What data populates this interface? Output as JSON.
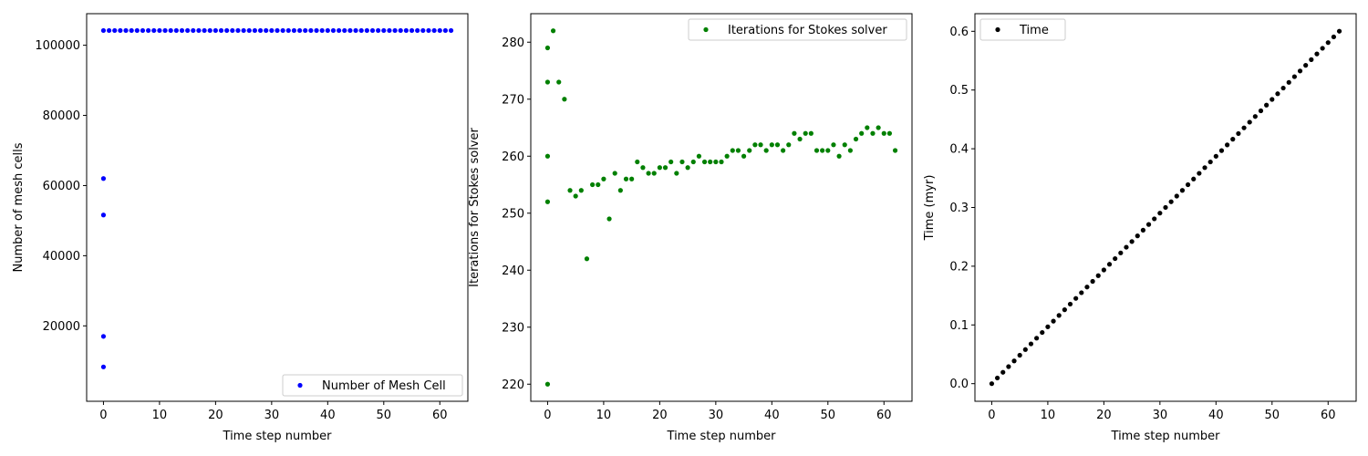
{
  "chart_data": [
    {
      "type": "scatter",
      "xlabel": "Time step number",
      "ylabel": "Number of mesh cells",
      "xlim": [
        -3,
        65
      ],
      "ylim": [
        -1500,
        109000
      ],
      "xticks": [
        0,
        10,
        20,
        30,
        40,
        50,
        60
      ],
      "yticks": [
        20000,
        40000,
        60000,
        80000,
        100000
      ],
      "grid": false,
      "legend_loc": "lower-right",
      "series": [
        {
          "name": "Number of Mesh Cell",
          "color": "#0000ff",
          "marker": "circle",
          "points": [
            [
              0,
              8300
            ],
            [
              0,
              17000
            ],
            [
              0,
              51600
            ],
            [
              0,
              62000
            ],
            [
              0,
              104200
            ],
            [
              1,
              104200
            ],
            [
              2,
              104200
            ],
            [
              3,
              104200
            ],
            [
              4,
              104200
            ],
            [
              5,
              104200
            ],
            [
              6,
              104200
            ],
            [
              7,
              104200
            ],
            [
              8,
              104200
            ],
            [
              9,
              104200
            ],
            [
              10,
              104200
            ],
            [
              11,
              104200
            ],
            [
              12,
              104200
            ],
            [
              13,
              104200
            ],
            [
              14,
              104200
            ],
            [
              15,
              104200
            ],
            [
              16,
              104200
            ],
            [
              17,
              104200
            ],
            [
              18,
              104200
            ],
            [
              19,
              104200
            ],
            [
              20,
              104200
            ],
            [
              21,
              104200
            ],
            [
              22,
              104200
            ],
            [
              23,
              104200
            ],
            [
              24,
              104200
            ],
            [
              25,
              104200
            ],
            [
              26,
              104200
            ],
            [
              27,
              104200
            ],
            [
              28,
              104200
            ],
            [
              29,
              104200
            ],
            [
              30,
              104200
            ],
            [
              31,
              104200
            ],
            [
              32,
              104200
            ],
            [
              33,
              104200
            ],
            [
              34,
              104200
            ],
            [
              35,
              104200
            ],
            [
              36,
              104200
            ],
            [
              37,
              104200
            ],
            [
              38,
              104200
            ],
            [
              39,
              104200
            ],
            [
              40,
              104200
            ],
            [
              41,
              104200
            ],
            [
              42,
              104200
            ],
            [
              43,
              104200
            ],
            [
              44,
              104200
            ],
            [
              45,
              104200
            ],
            [
              46,
              104200
            ],
            [
              47,
              104200
            ],
            [
              48,
              104200
            ],
            [
              49,
              104200
            ],
            [
              50,
              104200
            ],
            [
              51,
              104200
            ],
            [
              52,
              104200
            ],
            [
              53,
              104200
            ],
            [
              54,
              104200
            ],
            [
              55,
              104200
            ],
            [
              56,
              104200
            ],
            [
              57,
              104200
            ],
            [
              58,
              104200
            ],
            [
              59,
              104200
            ],
            [
              60,
              104200
            ],
            [
              61,
              104200
            ],
            [
              62,
              104200
            ]
          ]
        }
      ]
    },
    {
      "type": "scatter",
      "xlabel": "Time step number",
      "ylabel": "Iterations for Stokes solver",
      "xlim": [
        -3,
        65
      ],
      "ylim": [
        217,
        285
      ],
      "xticks": [
        0,
        10,
        20,
        30,
        40,
        50,
        60
      ],
      "yticks": [
        220,
        230,
        240,
        250,
        260,
        270,
        280
      ],
      "grid": false,
      "legend_loc": "upper-right",
      "series": [
        {
          "name": "Iterations for Stokes solver",
          "color": "#008000",
          "marker": "circle",
          "points": [
            [
              0,
              220
            ],
            [
              0,
              252
            ],
            [
              0,
              260
            ],
            [
              0,
              273
            ],
            [
              0,
              279
            ],
            [
              1,
              282
            ],
            [
              2,
              273
            ],
            [
              3,
              270
            ],
            [
              4,
              254
            ],
            [
              5,
              253
            ],
            [
              6,
              254
            ],
            [
              7,
              242
            ],
            [
              8,
              255
            ],
            [
              9,
              255
            ],
            [
              10,
              256
            ],
            [
              11,
              249
            ],
            [
              12,
              257
            ],
            [
              13,
              254
            ],
            [
              14,
              256
            ],
            [
              15,
              256
            ],
            [
              16,
              259
            ],
            [
              17,
              258
            ],
            [
              18,
              257
            ],
            [
              19,
              257
            ],
            [
              20,
              258
            ],
            [
              21,
              258
            ],
            [
              22,
              259
            ],
            [
              23,
              257
            ],
            [
              24,
              259
            ],
            [
              25,
              258
            ],
            [
              26,
              259
            ],
            [
              27,
              260
            ],
            [
              28,
              259
            ],
            [
              29,
              259
            ],
            [
              30,
              259
            ],
            [
              31,
              259
            ],
            [
              32,
              260
            ],
            [
              33,
              261
            ],
            [
              34,
              261
            ],
            [
              35,
              260
            ],
            [
              36,
              261
            ],
            [
              37,
              262
            ],
            [
              38,
              262
            ],
            [
              39,
              261
            ],
            [
              40,
              262
            ],
            [
              41,
              262
            ],
            [
              42,
              261
            ],
            [
              43,
              262
            ],
            [
              44,
              264
            ],
            [
              45,
              263
            ],
            [
              46,
              264
            ],
            [
              47,
              264
            ],
            [
              48,
              261
            ],
            [
              49,
              261
            ],
            [
              50,
              261
            ],
            [
              51,
              262
            ],
            [
              52,
              260
            ],
            [
              53,
              262
            ],
            [
              54,
              261
            ],
            [
              55,
              263
            ],
            [
              56,
              264
            ],
            [
              57,
              265
            ],
            [
              58,
              264
            ],
            [
              59,
              265
            ],
            [
              60,
              264
            ],
            [
              61,
              264
            ],
            [
              62,
              261
            ]
          ]
        }
      ]
    },
    {
      "type": "scatter",
      "xlabel": "Time step number",
      "ylabel": "Time (myr)",
      "xlim": [
        -3,
        65
      ],
      "ylim": [
        -0.03,
        0.63
      ],
      "xticks": [
        0,
        10,
        20,
        30,
        40,
        50,
        60
      ],
      "yticks": [
        0.0,
        0.1,
        0.2,
        0.3,
        0.4,
        0.5,
        0.6
      ],
      "ytick_format": 1,
      "grid": false,
      "legend_loc": "upper-left",
      "series": [
        {
          "name": "Time",
          "color": "#000000",
          "marker": "circle",
          "x_from": 0,
          "x_to": 62,
          "x_step": 1,
          "y_start": 0.0,
          "y_step": 0.00968
        }
      ]
    }
  ]
}
